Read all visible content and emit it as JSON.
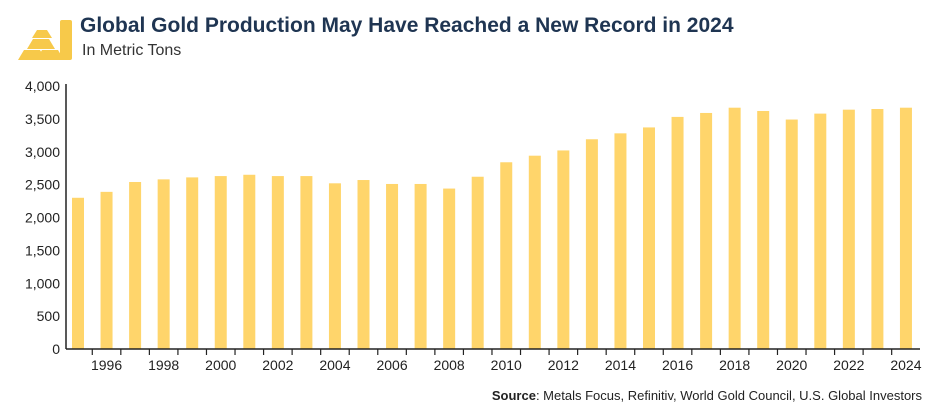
{
  "header": {
    "title": "Global Gold Production May Have Reached a New Record in 2024",
    "subtitle": "In Metric Tons",
    "logo_icon": "gold-bars-icon"
  },
  "source": {
    "label": "Source",
    "text": ": Metals Focus, Refinitiv, World Gold Council, U.S. Global Investors"
  },
  "colors": {
    "bar": "#ffd56b",
    "axis": "#222222",
    "logo": "#f7c94a"
  },
  "chart_data": {
    "type": "bar",
    "title": "Global Gold Production May Have Reached a New Record in 2024",
    "subtitle": "In Metric Tons",
    "ylim": [
      0,
      4000
    ],
    "yticks": [
      0,
      500,
      1000,
      1500,
      2000,
      2500,
      3000,
      3500,
      4000
    ],
    "ytick_labels": [
      "0",
      "500",
      "1,000",
      "1,500",
      "2,000",
      "2,500",
      "3,000",
      "3,500",
      "4,000"
    ],
    "categories": [
      "1995",
      "1996",
      "1997",
      "1998",
      "1999",
      "2000",
      "2001",
      "2002",
      "2003",
      "2004",
      "2005",
      "2006",
      "2007",
      "2008",
      "2009",
      "2010",
      "2011",
      "2012",
      "2013",
      "2014",
      "2015",
      "2016",
      "2017",
      "2018",
      "2019",
      "2020",
      "2021",
      "2022",
      "2023",
      "2024"
    ],
    "xtick_labels": [
      "1996",
      "1998",
      "2000",
      "2002",
      "2004",
      "2006",
      "2008",
      "2010",
      "2012",
      "2014",
      "2016",
      "2018",
      "2020",
      "2022",
      "2024"
    ],
    "values": [
      2300,
      2390,
      2540,
      2580,
      2610,
      2630,
      2650,
      2630,
      2630,
      2520,
      2570,
      2510,
      2510,
      2440,
      2620,
      2840,
      2940,
      3020,
      3190,
      3280,
      3370,
      3530,
      3590,
      3670,
      3620,
      3490,
      3580,
      3640,
      3650,
      3670
    ],
    "grid": false,
    "legend": "none"
  }
}
